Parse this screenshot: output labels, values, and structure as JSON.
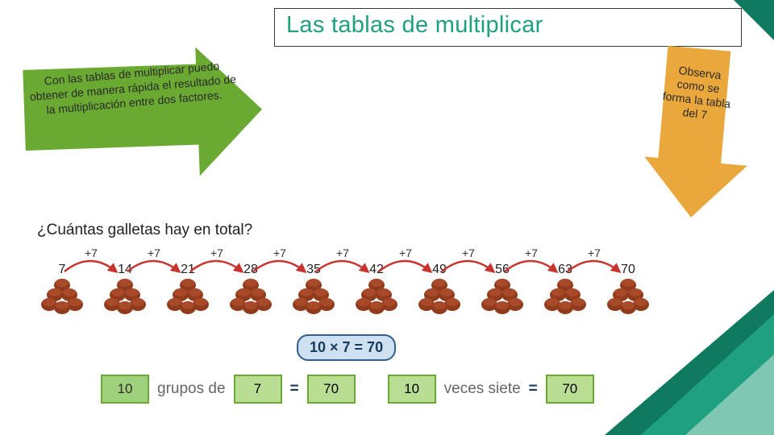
{
  "title": "Las tablas de multiplicar",
  "left_arrow_text": "Con las tablas de multiplicar puedo obtener de manera rápida el resultado de la multiplicación entre dos factores.",
  "right_arrow_text": "Observa como se forma la tabla del 7",
  "question": "¿Cuántas galletas hay en total?",
  "cookies": {
    "plus_label": "+7",
    "numbers": [
      "7",
      "14",
      "21",
      "28",
      "35",
      "42",
      "49",
      "56",
      "63",
      "70"
    ]
  },
  "equation": "10 × 7 = 70",
  "sentence": {
    "a": "10",
    "w1": "grupos de",
    "b": "7",
    "eq": "=",
    "c": "70",
    "d": "10",
    "w2": "veces siete",
    "eq2": "=",
    "e": "70"
  },
  "colors": {
    "cookie_base": "#8f3b1c",
    "cookie_top": "#a8492a",
    "arc_red": "#c8342d"
  }
}
